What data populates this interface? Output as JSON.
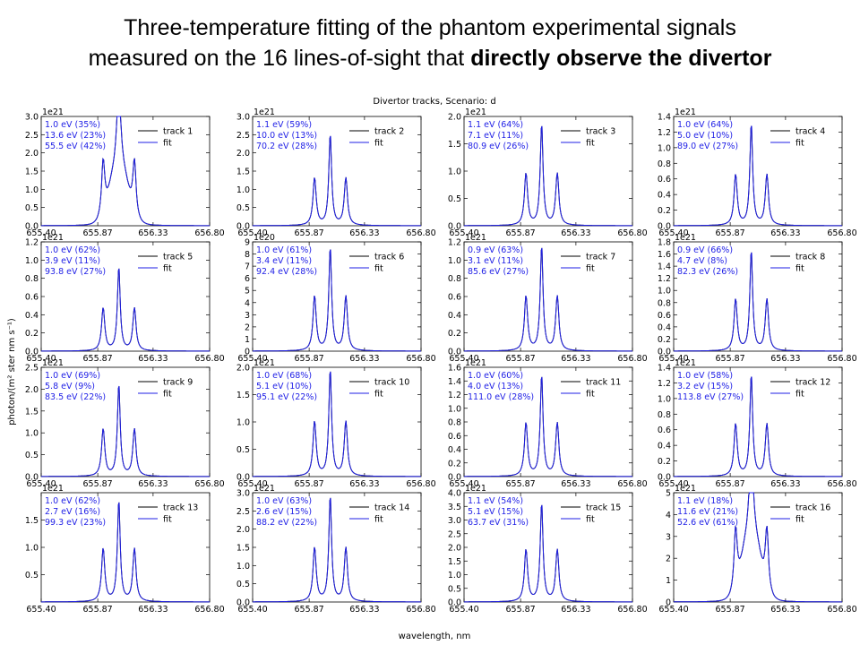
{
  "title": {
    "line1": "Three-temperature fitting of the phantom experimental signals",
    "line2_plain": "measured on the 16 lines-of-sight that ",
    "line2_bold": "directly observe the divertor"
  },
  "figure": {
    "suptitle": "Divertor tracks, Scenario: d",
    "ylabel": "photon/(m² ster nm s⁻¹)",
    "xlabel": "wavelength, nm"
  },
  "colors": {
    "data": "#000000",
    "fit": "#1f1fe6",
    "annotation": "#1f1fe6"
  },
  "chart_data": {
    "type": "line",
    "x_ticks": [
      "655.40",
      "655.87",
      "656.33",
      "656.80"
    ],
    "xlim": [
      655.4,
      656.8
    ],
    "series_names": [
      "track",
      "fit"
    ],
    "panels": [
      {
        "track": "track 1",
        "exp": "1e21",
        "ylim": [
          0,
          3.0
        ],
        "yticks": [
          "0.0",
          "0.5",
          "1.0",
          "1.5",
          "2.0",
          "2.5",
          "3.0"
        ],
        "peaks": {
          "center": 2.85,
          "side": 1.5
        },
        "temps": [
          "1.0 eV (35%)",
          "13.6 eV (23%)",
          "55.5 eV (42%)"
        ]
      },
      {
        "track": "track 2",
        "exp": "1e21",
        "ylim": [
          0,
          3.0
        ],
        "yticks": [
          "0.0",
          "0.5",
          "1.0",
          "1.5",
          "2.0",
          "2.5",
          "3.0"
        ],
        "peaks": {
          "center": 2.5,
          "side": 1.3
        },
        "temps": [
          "1.1 eV (59%)",
          "10.0 eV (13%)",
          "70.2 eV (28%)"
        ]
      },
      {
        "track": "track 3",
        "exp": "1e21",
        "ylim": [
          0,
          2.0
        ],
        "yticks": [
          "0.0",
          "0.5",
          "1.0",
          "1.5",
          "2.0"
        ],
        "peaks": {
          "center": 1.85,
          "side": 0.95
        },
        "temps": [
          "1.1 eV (64%)",
          "7.1 eV (11%)",
          "80.9 eV (26%)"
        ]
      },
      {
        "track": "track 4",
        "exp": "1e21",
        "ylim": [
          0,
          1.4
        ],
        "yticks": [
          "0.0",
          "0.2",
          "0.4",
          "0.6",
          "0.8",
          "1.0",
          "1.2",
          "1.4"
        ],
        "peaks": {
          "center": 1.3,
          "side": 0.65
        },
        "temps": [
          "1.0 eV (64%)",
          "5.0 eV (10%)",
          "89.0 eV (27%)"
        ]
      },
      {
        "track": "track 5",
        "exp": "1e21",
        "ylim": [
          0,
          1.2
        ],
        "yticks": [
          "0.0",
          "0.2",
          "0.4",
          "0.6",
          "0.8",
          "1.0",
          "1.2"
        ],
        "peaks": {
          "center": 0.92,
          "side": 0.47
        },
        "temps": [
          "1.0 eV (62%)",
          "3.9 eV (11%)",
          "93.8 eV (27%)"
        ]
      },
      {
        "track": "track 6",
        "exp": "1e20",
        "ylim": [
          0,
          9
        ],
        "yticks": [
          "0",
          "1",
          "2",
          "3",
          "4",
          "5",
          "6",
          "7",
          "8",
          "9"
        ],
        "peaks": {
          "center": 8.5,
          "side": 4.5
        },
        "temps": [
          "1.0 eV (61%)",
          "3.4 eV (11%)",
          "92.4 eV (28%)"
        ]
      },
      {
        "track": "track 7",
        "exp": "1e21",
        "ylim": [
          0,
          1.2
        ],
        "yticks": [
          "0.0",
          "0.2",
          "0.4",
          "0.6",
          "0.8",
          "1.0",
          "1.2"
        ],
        "peaks": {
          "center": 1.15,
          "side": 0.6
        },
        "temps": [
          "0.9 eV (63%)",
          "3.1 eV (11%)",
          "85.6 eV (27%)"
        ]
      },
      {
        "track": "track 8",
        "exp": "1e21",
        "ylim": [
          0,
          1.8
        ],
        "yticks": [
          "0.0",
          "0.2",
          "0.4",
          "0.6",
          "0.8",
          "1.0",
          "1.2",
          "1.4",
          "1.6",
          "1.8"
        ],
        "peaks": {
          "center": 1.65,
          "side": 0.85
        },
        "temps": [
          "0.9 eV (66%)",
          "4.7 eV (8%)",
          "82.3 eV (26%)"
        ]
      },
      {
        "track": "track 9",
        "exp": "1e21",
        "ylim": [
          0,
          2.5
        ],
        "yticks": [
          "0.0",
          "0.5",
          "1.0",
          "1.5",
          "2.0",
          "2.5"
        ],
        "peaks": {
          "center": 2.1,
          "side": 1.08
        },
        "temps": [
          "1.0 eV (69%)",
          "5.8 eV (9%)",
          "83.5 eV (22%)"
        ]
      },
      {
        "track": "track 10",
        "exp": "1e21",
        "ylim": [
          0,
          2.0
        ],
        "yticks": [
          "0.0",
          "0.5",
          "1.0",
          "1.5",
          "2.0"
        ],
        "peaks": {
          "center": 1.95,
          "side": 1.0
        },
        "temps": [
          "1.0 eV (68%)",
          "5.1 eV (10%)",
          "95.1 eV (22%)"
        ]
      },
      {
        "track": "track 11",
        "exp": "1e21",
        "ylim": [
          0,
          1.6
        ],
        "yticks": [
          "0.0",
          "0.2",
          "0.4",
          "0.6",
          "0.8",
          "1.0",
          "1.2",
          "1.4",
          "1.6"
        ],
        "peaks": {
          "center": 1.48,
          "side": 0.78
        },
        "temps": [
          "1.0 eV (60%)",
          "4.0 eV (13%)",
          "111.0 eV (28%)"
        ]
      },
      {
        "track": "track 12",
        "exp": "1e21",
        "ylim": [
          0,
          1.4
        ],
        "yticks": [
          "0.0",
          "0.2",
          "0.4",
          "0.6",
          "0.8",
          "1.0",
          "1.2",
          "1.4"
        ],
        "peaks": {
          "center": 1.3,
          "side": 0.67
        },
        "temps": [
          "1.0 eV (58%)",
          "3.2 eV (15%)",
          "113.8 eV (27%)"
        ]
      },
      {
        "track": "track 13",
        "exp": "1e21",
        "ylim": [
          0,
          2.0
        ],
        "yticks": [
          "0.5",
          "1.0",
          "1.5"
        ],
        "yticks_all": true,
        "peaks": {
          "center": 1.85,
          "side": 0.97
        },
        "temps": [
          "1.0 eV (62%)",
          "2.7 eV (16%)",
          "99.3 eV (23%)"
        ]
      },
      {
        "track": "track 14",
        "exp": "1e21",
        "ylim": [
          0,
          3.0
        ],
        "yticks": [
          "0.0",
          "0.5",
          "1.0",
          "1.5",
          "2.0",
          "2.5",
          "3.0"
        ],
        "peaks": {
          "center": 2.9,
          "side": 1.48
        },
        "temps": [
          "1.0 eV (63%)",
          "2.6 eV (15%)",
          "88.2 eV (22%)"
        ]
      },
      {
        "track": "track 15",
        "exp": "1e21",
        "ylim": [
          0,
          4.0
        ],
        "yticks": [
          "0.0",
          "0.5",
          "1.0",
          "1.5",
          "2.0",
          "2.5",
          "3.0",
          "3.5",
          "4.0"
        ],
        "peaks": {
          "center": 3.6,
          "side": 1.9
        },
        "temps": [
          "1.1 eV (54%)",
          "5.1 eV (15%)",
          "63.7 eV (31%)"
        ]
      },
      {
        "track": "track 16",
        "exp": "1e21",
        "ylim": [
          0,
          5
        ],
        "yticks": [
          "0",
          "1",
          "2",
          "3",
          "4",
          "5"
        ],
        "peaks": {
          "center": 4.9,
          "side": 2.8
        },
        "temps": [
          "1.1 eV (18%)",
          "11.6 eV (21%)",
          "52.6 eV (61%)"
        ]
      }
    ]
  }
}
